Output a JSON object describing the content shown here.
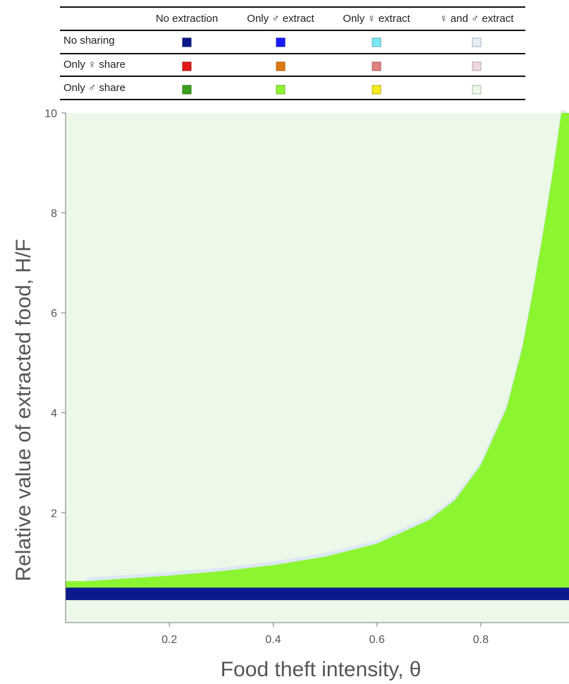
{
  "legend": {
    "columns": [
      "No extraction",
      "Only ♂ extract",
      "Only ♀ extract",
      "♀ and ♂ extract"
    ],
    "rows": [
      {
        "label": "No sharing",
        "colors": [
          "#0a1a8c",
          "#1a1aff",
          "#7ae8f0",
          "#e3eef5"
        ]
      },
      {
        "label": "Only ♀ share",
        "colors": [
          "#e61919",
          "#e07a14",
          "#e08080",
          "#f0d9de"
        ]
      },
      {
        "label": "Only ♂ share",
        "colors": [
          "#3aa11c",
          "#8cf532",
          "#f5eb1e",
          "#ecf8e8"
        ]
      }
    ]
  },
  "chart_data": {
    "type": "heatmap",
    "xlabel": "Food theft intensity, θ",
    "ylabel": "Relative value of extracted food, H/F",
    "xlim": [
      0.0,
      0.97
    ],
    "ylim": [
      -0.2,
      10
    ],
    "xticks": [
      "0.2",
      "0.4",
      "0.6",
      "0.8"
    ],
    "xtick_values": [
      0.2,
      0.4,
      0.6,
      0.8
    ],
    "yticks": [
      "2",
      "4",
      "6",
      "8",
      "10"
    ],
    "ytick_values": [
      2,
      4,
      6,
      8,
      10
    ],
    "regions": [
      {
        "name": "No sharing, no extraction",
        "color": "#0a1a8c",
        "y_range": [
          0.25,
          0.5
        ]
      },
      {
        "name": "Only ♂ share, only ♂ extract",
        "color": "#8cf532",
        "upper_boundary": [
          {
            "x": 0.04,
            "y": 0.63
          },
          {
            "x": 0.1,
            "y": 0.67
          },
          {
            "x": 0.2,
            "y": 0.74
          },
          {
            "x": 0.3,
            "y": 0.83
          },
          {
            "x": 0.4,
            "y": 0.95
          },
          {
            "x": 0.5,
            "y": 1.12
          },
          {
            "x": 0.6,
            "y": 1.38
          },
          {
            "x": 0.7,
            "y": 1.85
          },
          {
            "x": 0.75,
            "y": 2.25
          },
          {
            "x": 0.8,
            "y": 2.95
          },
          {
            "x": 0.85,
            "y": 4.1
          },
          {
            "x": 0.88,
            "y": 5.3
          },
          {
            "x": 0.9,
            "y": 6.4
          },
          {
            "x": 0.92,
            "y": 7.6
          },
          {
            "x": 0.94,
            "y": 8.9
          },
          {
            "x": 0.955,
            "y": 10
          }
        ]
      },
      {
        "name": "No sharing, ♀ and ♂ extract",
        "color": "#dde8f5",
        "band_above_boundary": 0.07
      },
      {
        "name": "Only ♂ share, ♀ and ♂ extract",
        "color": "#ecf8e8",
        "fills": "rest"
      }
    ]
  }
}
